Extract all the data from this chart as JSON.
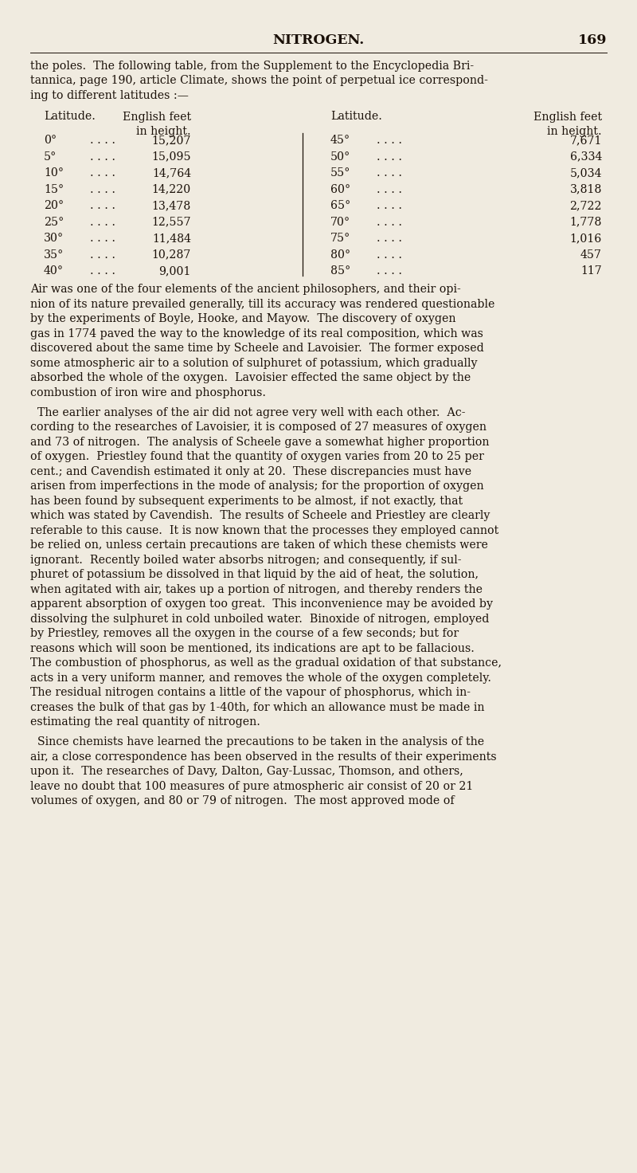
{
  "bg_color": "#f0ebe0",
  "text_color": "#1a1008",
  "page_title": "NITROGEN.",
  "page_number": "169",
  "title_fontsize": 12.5,
  "body_fontsize": 10.2,
  "intro_lines": [
    "the poles.  The following table, from the Supplement to the Encyclopedia Bri-",
    "tannica, page 190, article Climate, shows the point of perpetual ice correspond-",
    "ing to different latitudes :—"
  ],
  "table_left": [
    [
      "0°",
      ". . . .",
      "15,207"
    ],
    [
      "5°",
      ". . . .",
      "15,095"
    ],
    [
      "10°",
      ". . . .",
      "14,764"
    ],
    [
      "15°",
      ". . . .",
      "14,220"
    ],
    [
      "20°",
      ". . . .",
      "13,478"
    ],
    [
      "25°",
      ". . . .",
      "12,557"
    ],
    [
      "30°",
      ". . . .",
      "11,484"
    ],
    [
      "35°",
      ". . . .",
      "10,287"
    ],
    [
      "40°",
      ". . . .",
      "9,001"
    ]
  ],
  "table_right": [
    [
      "45°",
      ". . . .",
      "7,671"
    ],
    [
      "50°",
      ". . . .",
      "6,334"
    ],
    [
      "55°",
      ". . . .",
      "5,034"
    ],
    [
      "60°",
      ". . . .",
      "3,818"
    ],
    [
      "65°",
      ". . . .",
      "2,722"
    ],
    [
      "70°",
      ". . . .",
      "1,778"
    ],
    [
      "75°",
      ". . . .",
      "1,016"
    ],
    [
      "80°",
      ". . . .",
      "457"
    ],
    [
      "85°",
      ". . . .",
      "117"
    ]
  ],
  "paragraphs_wrapped": [
    [
      "Air was one of the four elements of the ancient philosophers, and their opi-",
      "nion of its nature prevailed generally, till its accuracy was rendered questionable",
      "by the experiments of Boyle, Hooke, and Mayow.  The discovery of oxygen",
      "gas in 1774 paved the way to the knowledge of its real composition, which was",
      "discovered about the same time by Scheele and Lavoisier.  The former exposed",
      "some atmospheric air to a solution of sulphuret of potassium, which gradually",
      "absorbed the whole of the oxygen.  Lavoisier effected the same object by the",
      "combustion of iron wire and phosphorus."
    ],
    [
      "  The earlier analyses of the air did not agree very well with each other.  Ac-",
      "cording to the researches of Lavoisier, it is composed of 27 measures of oxygen",
      "and 73 of nitrogen.  The analysis of Scheele gave a somewhat higher proportion",
      "of oxygen.  Priestley found that the quantity of oxygen varies from 20 to 25 per",
      "cent.; and Cavendish estimated it only at 20.  These discrepancies must have",
      "arisen from imperfections in the mode of analysis; for the proportion of oxygen",
      "has been found by subsequent experiments to be almost, if not exactly, that",
      "which was stated by Cavendish.  The results of Scheele and Priestley are clearly",
      "referable to this cause.  It is now known that the processes they employed cannot",
      "be relied on, unless certain precautions are taken of which these chemists were",
      "ignorant.  Recently boiled water absorbs nitrogen; and consequently, if sul-",
      "phuret of potassium be dissolved in that liquid by the aid of heat, the solution,",
      "when agitated with air, takes up a portion of nitrogen, and thereby renders the",
      "apparent absorption of oxygen too great.  This inconvenience may be avoided by",
      "dissolving the sulphuret in cold unboiled water.  Binoxide of nitrogen, employed",
      "by Priestley, removes all the oxygen in the course of a few seconds; but for",
      "reasons which will soon be mentioned, its indications are apt to be fallacious.",
      "The combustion of phosphorus, as well as the gradual oxidation of that substance,",
      "acts in a very uniform manner, and removes the whole of the oxygen completely.",
      "The residual nitrogen contains a little of the vapour of phosphorus, which in-",
      "creases the bulk of that gas by 1-40th, for which an allowance must be made in",
      "estimating the real quantity of nitrogen."
    ],
    [
      "  Since chemists have learned the precautions to be taken in the analysis of the",
      "air, a close correspondence has been observed in the results of their experiments",
      "upon it.  The researches of Davy, Dalton, Gay-Lussac, Thomson, and others,",
      "leave no doubt that 100 measures of pure atmospheric air consist of 20 or 21",
      "volumes of oxygen, and 80 or 79 of nitrogen.  The most approved mode of"
    ]
  ]
}
